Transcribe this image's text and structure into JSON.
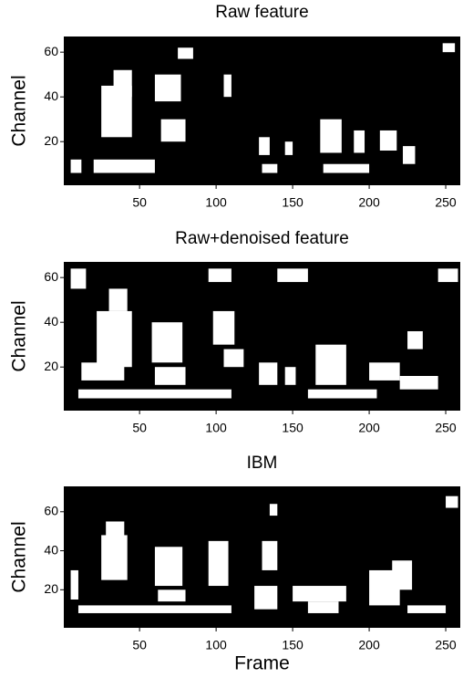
{
  "chart_data": [
    {
      "type": "mask",
      "title": "Raw feature",
      "y_label": "Channel",
      "xlim": [
        0.5,
        259.5
      ],
      "ylim": [
        0.5,
        67
      ],
      "xticks": [
        50,
        100,
        150,
        200,
        250
      ],
      "yticks": [
        20,
        40,
        60
      ],
      "background": "#000000",
      "color": "#ffffff",
      "regions": [
        [
          25,
          45,
          22,
          45
        ],
        [
          33,
          45,
          40,
          52
        ],
        [
          20,
          60,
          6,
          12
        ],
        [
          5,
          12,
          6,
          12
        ],
        [
          60,
          77,
          38,
          50
        ],
        [
          64,
          80,
          20,
          30
        ],
        [
          105,
          110,
          40,
          50
        ],
        [
          128,
          135,
          14,
          22
        ],
        [
          145,
          150,
          14,
          20
        ],
        [
          168,
          182,
          15,
          30
        ],
        [
          170,
          200,
          6,
          10
        ],
        [
          190,
          197,
          15,
          25
        ],
        [
          207,
          218,
          16,
          25
        ],
        [
          222,
          230,
          10,
          18
        ],
        [
          130,
          140,
          6,
          10
        ],
        [
          75,
          85,
          57,
          62
        ],
        [
          248,
          256,
          60,
          64
        ]
      ]
    },
    {
      "type": "mask",
      "title": "Raw+denoised feature",
      "y_label": "Channel",
      "xlim": [
        0.5,
        259.5
      ],
      "ylim": [
        0.5,
        67
      ],
      "xticks": [
        50,
        100,
        150,
        200,
        250
      ],
      "yticks": [
        20,
        40,
        60
      ],
      "background": "#000000",
      "color": "#ffffff",
      "regions": [
        [
          22,
          45,
          20,
          45
        ],
        [
          30,
          42,
          45,
          55
        ],
        [
          10,
          110,
          6,
          10
        ],
        [
          12,
          40,
          14,
          22
        ],
        [
          58,
          78,
          22,
          40
        ],
        [
          60,
          80,
          12,
          20
        ],
        [
          98,
          112,
          30,
          45
        ],
        [
          105,
          118,
          20,
          28
        ],
        [
          128,
          140,
          12,
          22
        ],
        [
          145,
          152,
          12,
          20
        ],
        [
          165,
          185,
          12,
          30
        ],
        [
          160,
          205,
          6,
          10
        ],
        [
          200,
          220,
          14,
          22
        ],
        [
          220,
          245,
          10,
          16
        ],
        [
          225,
          235,
          28,
          36
        ],
        [
          5,
          15,
          55,
          64
        ],
        [
          95,
          110,
          58,
          64
        ],
        [
          140,
          160,
          58,
          64
        ],
        [
          245,
          258,
          58,
          64
        ]
      ]
    },
    {
      "type": "mask",
      "title": "IBM",
      "y_label": "Channel",
      "x_label": "Frame",
      "xlim": [
        0.5,
        259.5
      ],
      "ylim": [
        0.5,
        73
      ],
      "xticks": [
        50,
        100,
        150,
        200,
        250
      ],
      "yticks": [
        20,
        40,
        60
      ],
      "background": "#000000",
      "color": "#ffffff",
      "regions": [
        [
          25,
          42,
          25,
          48
        ],
        [
          28,
          40,
          45,
          55
        ],
        [
          10,
          110,
          8,
          12
        ],
        [
          5,
          10,
          15,
          30
        ],
        [
          60,
          78,
          22,
          42
        ],
        [
          62,
          80,
          14,
          20
        ],
        [
          95,
          108,
          22,
          45
        ],
        [
          125,
          140,
          10,
          22
        ],
        [
          130,
          140,
          30,
          45
        ],
        [
          150,
          185,
          14,
          22
        ],
        [
          160,
          180,
          8,
          14
        ],
        [
          200,
          220,
          12,
          30
        ],
        [
          215,
          228,
          20,
          35
        ],
        [
          225,
          250,
          8,
          12
        ],
        [
          135,
          140,
          58,
          64
        ],
        [
          250,
          258,
          62,
          68
        ]
      ]
    }
  ]
}
